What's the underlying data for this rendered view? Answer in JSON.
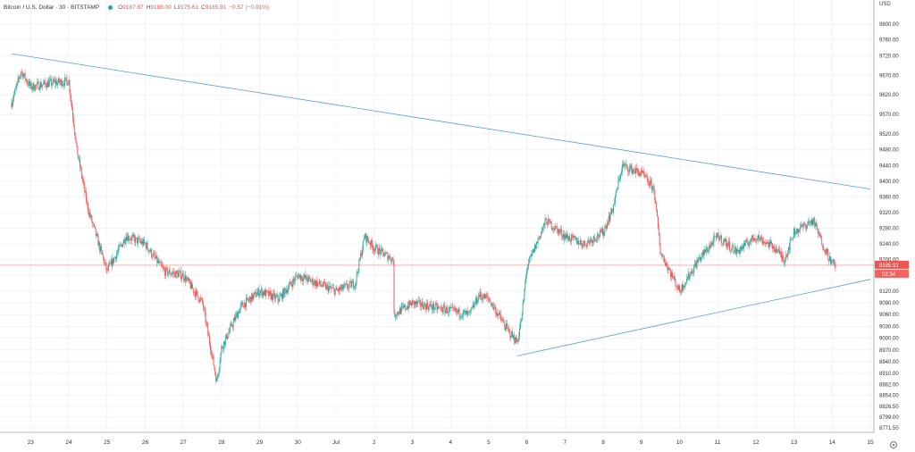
{
  "header": {
    "symbol": "Bitcoin / U.S. Dollar · 30 · BITSTAMP",
    "open_label": "O",
    "open": "9187.87",
    "high_label": "H",
    "high": "9188.00",
    "low_label": "L",
    "low": "9175.61",
    "close_label": "C",
    "close": "9185.91",
    "change": "−0.57 (−0.01%)"
  },
  "price_axis": {
    "currency": "USD"
  },
  "last_price_tag": "9185.91",
  "countdown_tag": "02:34",
  "colors": {
    "up": "#26a69a",
    "down": "#ef5350",
    "trendline": "#5b9bd5",
    "price_line": "#ef5350"
  },
  "chart_data": {
    "type": "candlestick",
    "x_tick_labels": [
      "23",
      "24",
      "25",
      "26",
      "27",
      "28",
      "29",
      "30",
      "Jul",
      "2",
      "3",
      "4",
      "5",
      "6",
      "7",
      "8",
      "9",
      "10",
      "11",
      "12",
      "13",
      "14",
      "15"
    ],
    "y_tick_labels": [
      "9800.00",
      "9760.00",
      "9720.00",
      "9670.00",
      "9620.00",
      "9570.00",
      "9520.00",
      "9480.00",
      "9440.00",
      "9400.00",
      "9360.00",
      "9320.00",
      "9280.00",
      "9240.00",
      "9200.00",
      "9160.00",
      "9120.00",
      "9090.00",
      "9060.00",
      "9030.00",
      "9000.00",
      "8970.00",
      "8940.00",
      "8910.00",
      "8882.00",
      "8854.00",
      "8826.50",
      "8799.00",
      "8771.50"
    ],
    "ylim": [
      8760,
      9830
    ],
    "approx_close_path": [
      {
        "t": "22 Jun 12:00",
        "v": 9600
      },
      {
        "t": "22 Jun 18:00",
        "v": 9680
      },
      {
        "t": "23 Jun 00:00",
        "v": 9640
      },
      {
        "t": "23 Jun 12:00",
        "v": 9650
      },
      {
        "t": "24 Jun 00:00",
        "v": 9655
      },
      {
        "t": "24 Jun 05:00",
        "v": 9480
      },
      {
        "t": "24 Jun 12:00",
        "v": 9330
      },
      {
        "t": "25 Jun 00:00",
        "v": 9170
      },
      {
        "t": "25 Jun 12:00",
        "v": 9260
      },
      {
        "t": "26 Jun 00:00",
        "v": 9240
      },
      {
        "t": "26 Jun 12:00",
        "v": 9170
      },
      {
        "t": "27 Jun 00:00",
        "v": 9160
      },
      {
        "t": "27 Jun 12:00",
        "v": 9090
      },
      {
        "t": "27 Jun 21:00",
        "v": 8890
      },
      {
        "t": "28 Jun 00:00",
        "v": 8975
      },
      {
        "t": "28 Jun 12:00",
        "v": 9080
      },
      {
        "t": "29 Jun 00:00",
        "v": 9120
      },
      {
        "t": "29 Jun 12:00",
        "v": 9100
      },
      {
        "t": "30 Jun 00:00",
        "v": 9160
      },
      {
        "t": "30 Jun 12:00",
        "v": 9140
      },
      {
        "t": "1 Jul 00:00",
        "v": 9120
      },
      {
        "t": "1 Jul 12:00",
        "v": 9140
      },
      {
        "t": "1 Jul 18:00",
        "v": 9260
      },
      {
        "t": "2 Jul 00:00",
        "v": 9230
      },
      {
        "t": "2 Jul 12:00",
        "v": 9200
      },
      {
        "t": "2 Jul 12:30",
        "v": 9060
      },
      {
        "t": "3 Jul 00:00",
        "v": 9090
      },
      {
        "t": "3 Jul 12:00",
        "v": 9080
      },
      {
        "t": "4 Jul 00:00",
        "v": 9070
      },
      {
        "t": "4 Jul 12:00",
        "v": 9060
      },
      {
        "t": "4 Jul 18:00",
        "v": 9110
      },
      {
        "t": "5 Jul 00:00",
        "v": 9100
      },
      {
        "t": "5 Jul 12:00",
        "v": 9020
      },
      {
        "t": "5 Jul 18:00",
        "v": 8990
      },
      {
        "t": "5 Jul 21:00",
        "v": 9060
      },
      {
        "t": "6 Jul 00:00",
        "v": 9180
      },
      {
        "t": "6 Jul 12:00",
        "v": 9300
      },
      {
        "t": "7 Jul 00:00",
        "v": 9260
      },
      {
        "t": "7 Jul 12:00",
        "v": 9240
      },
      {
        "t": "8 Jul 00:00",
        "v": 9270
      },
      {
        "t": "8 Jul 06:00",
        "v": 9330
      },
      {
        "t": "8 Jul 12:00",
        "v": 9440
      },
      {
        "t": "9 Jul 00:00",
        "v": 9420
      },
      {
        "t": "9 Jul 08:00",
        "v": 9380
      },
      {
        "t": "9 Jul 12:00",
        "v": 9220
      },
      {
        "t": "10 Jul 00:00",
        "v": 9120
      },
      {
        "t": "10 Jul 12:00",
        "v": 9200
      },
      {
        "t": "11 Jul 00:00",
        "v": 9260
      },
      {
        "t": "11 Jul 12:00",
        "v": 9220
      },
      {
        "t": "12 Jul 00:00",
        "v": 9260
      },
      {
        "t": "12 Jul 12:00",
        "v": 9230
      },
      {
        "t": "12 Jul 18:00",
        "v": 9200
      },
      {
        "t": "13 Jul 00:00",
        "v": 9270
      },
      {
        "t": "13 Jul 12:00",
        "v": 9300
      },
      {
        "t": "13 Jul 18:00",
        "v": 9240
      },
      {
        "t": "14 Jul 00:00",
        "v": 9190
      },
      {
        "t": "14 Jul 02:00",
        "v": 9185.91
      }
    ],
    "trendlines": [
      {
        "from": {
          "t": "22 Jun 12:00",
          "v": 9725
        },
        "to": {
          "t": "15 Jul 00:00",
          "v": 9380
        }
      },
      {
        "from": {
          "t": "5 Jul 18:00",
          "v": 8955
        },
        "to": {
          "t": "15 Jul 00:00",
          "v": 9150
        }
      }
    ],
    "last_price": 9185.91,
    "grid": true
  }
}
